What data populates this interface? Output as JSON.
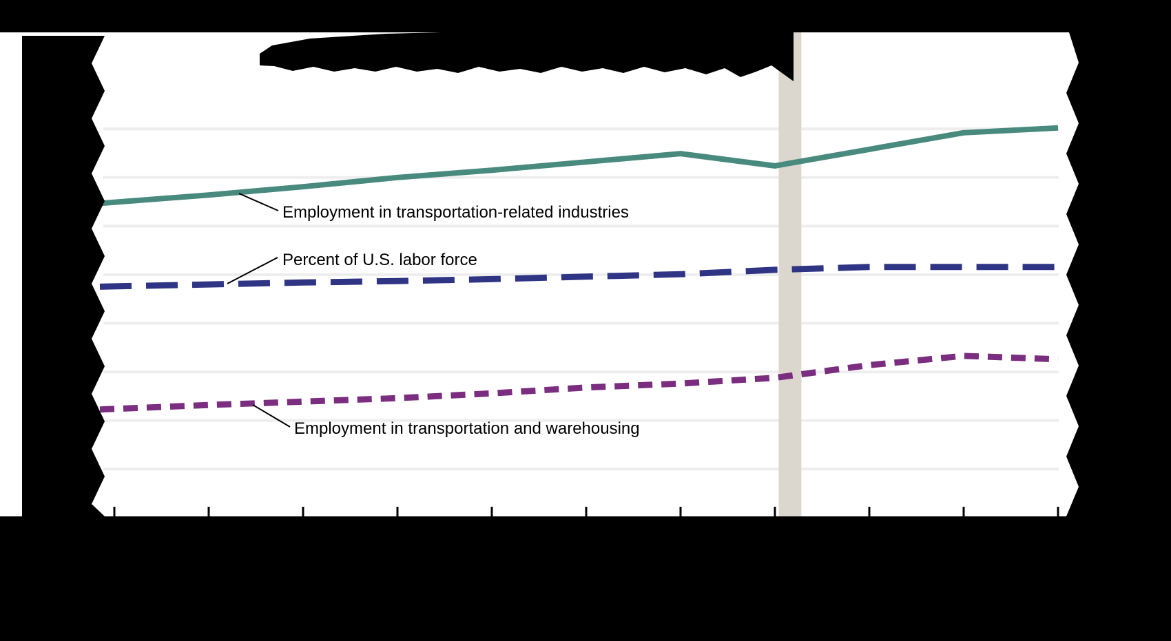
{
  "figure": {
    "plot_bg": "#ffffff",
    "outer_bg": "#000000",
    "gridline_color": "#eeeeee",
    "band_color": "#dbd7ce",
    "text_color": "#000000",
    "redacted_regions": [
      "chart-title",
      "y-axis-labels",
      "x-axis-labels",
      "right-axis-labels",
      "source-footer"
    ]
  },
  "annotations": {
    "series1_label": "Employment in transportation-related industries",
    "series2_label": "Percent of U.S. labor force",
    "series3_label": "Employment in transportation and warehousing"
  },
  "chart_data": {
    "type": "line",
    "title": "",
    "x_axis": {
      "tick_count": 11,
      "tick_labels_visible": false,
      "note": "tick labels hidden by black redaction marks"
    },
    "y_axis": {
      "gridline_count": 8,
      "tick_labels_visible": false,
      "units": "gridline-intervals above baseline (axis numbers redacted)"
    },
    "grid": true,
    "legend_position": "inline-annotations",
    "series": [
      {
        "name": "Employment in transportation-related industries",
        "color": "#488a7d",
        "style": "solid",
        "values": [
          6.49,
          6.64,
          6.81,
          7.0,
          7.15,
          7.32,
          7.49,
          7.24,
          7.58,
          7.92,
          8.02
        ]
      },
      {
        "name": "Percent of U.S. labor force",
        "color": "#2f3584",
        "style": "dashed-long",
        "values": [
          4.76,
          4.8,
          4.84,
          4.87,
          4.91,
          4.96,
          5.01,
          5.1,
          5.16,
          5.16,
          5.16
        ]
      },
      {
        "name": "Employment in transportation and warehousing",
        "color": "#7b2d80",
        "style": "dashed-short",
        "values": [
          2.24,
          2.32,
          2.39,
          2.46,
          2.56,
          2.68,
          2.76,
          2.88,
          3.14,
          3.33,
          3.26
        ]
      }
    ],
    "highlight_band": {
      "from_tick": 7.04,
      "to_tick": 7.28
    }
  }
}
